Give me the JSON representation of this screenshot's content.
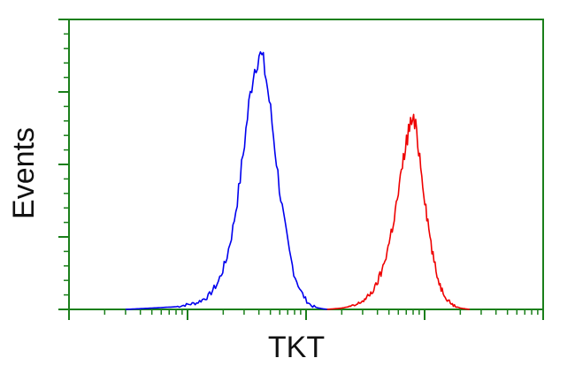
{
  "chart_data": {
    "type": "area",
    "title": "",
    "xlabel": "TKT",
    "ylabel": "Events",
    "x_scale": "log",
    "xlim": [
      1,
      10000
    ],
    "ylim": [
      0,
      1
    ],
    "grid": false,
    "legend": "none",
    "frame_color": "#1a7f1a",
    "series": [
      {
        "color": "#0000ee",
        "x": [
          3,
          5,
          8,
          12,
          15,
          18,
          21,
          24,
          27,
          30,
          33,
          36,
          40,
          43,
          46,
          50,
          55,
          60,
          66,
          72,
          80,
          90,
          100,
          110,
          125,
          140,
          155
        ],
        "y": [
          0,
          0.005,
          0.01,
          0.025,
          0.05,
          0.1,
          0.18,
          0.3,
          0.45,
          0.62,
          0.78,
          0.9,
          0.97,
          0.95,
          0.88,
          0.76,
          0.6,
          0.45,
          0.32,
          0.22,
          0.13,
          0.07,
          0.035,
          0.015,
          0.006,
          0.002,
          0
        ]
      },
      {
        "color": "#ee0000",
        "x": [
          150,
          200,
          260,
          320,
          380,
          440,
          500,
          560,
          620,
          680,
          740,
          790,
          850,
          910,
          980,
          1060,
          1150,
          1250,
          1380,
          1550,
          1750,
          2000,
          2400
        ],
        "y": [
          0,
          0.005,
          0.015,
          0.04,
          0.08,
          0.15,
          0.25,
          0.36,
          0.48,
          0.6,
          0.69,
          0.72,
          0.68,
          0.58,
          0.46,
          0.34,
          0.23,
          0.14,
          0.08,
          0.04,
          0.015,
          0.005,
          0
        ]
      }
    ]
  }
}
